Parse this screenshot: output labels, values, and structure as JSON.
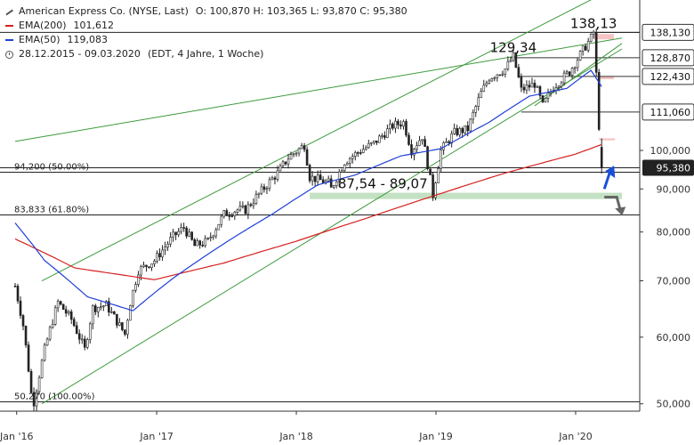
{
  "legend": {
    "title": "American Express Co. (NYSE, Last)",
    "ohlc": "O: 100,870  H: 103,365  L: 93,870  C: 95,380",
    "ema200_label": "EMA(200)",
    "ema200_value": "101,612",
    "ema50_label": "EMA(50)",
    "ema50_value": "119,083",
    "period": "28.12.2015 - 09.03.2020",
    "period_note": "(EDT, 4 Jahre, 1 Woche)"
  },
  "colors": {
    "candle": "#222222",
    "ema200": "#d62020",
    "ema50": "#1f3fd6",
    "channel": "#3d9a3d",
    "support_zone": "#b9dcb9",
    "resistance_zone": "#f6c4c4",
    "price_box_bg": "#222222",
    "arrow_up": "#1a4fd8",
    "arrow_down": "#666666"
  },
  "chart_data": {
    "type": "candlestick",
    "ylim": [
      49,
      148
    ],
    "y_ticks": [
      "50,000",
      "60,000",
      "70,000",
      "80,000",
      "90,000",
      "100,000"
    ],
    "y_tick_values": [
      50,
      60,
      70,
      80,
      90,
      100
    ],
    "x_tick_labels": [
      "Jan '16",
      "Jan '17",
      "Jan '18",
      "Jan '19",
      "Jan '20"
    ],
    "x_tick_dates": [
      "2016-01-01",
      "2017-01-01",
      "2018-01-01",
      "2019-01-01",
      "2020-01-01"
    ],
    "date_range": [
      "2015-12-28",
      "2020-03-09"
    ],
    "price_anchors": [
      {
        "date": "2015-12-28",
        "close": 69.0
      },
      {
        "date": "2016-01-18",
        "close": 62.0
      },
      {
        "date": "2016-02-08",
        "close": 51.5
      },
      {
        "date": "2016-02-15",
        "close": 50.27
      },
      {
        "date": "2016-03-14",
        "close": 58.0
      },
      {
        "date": "2016-04-18",
        "close": 66.0
      },
      {
        "date": "2016-05-23",
        "close": 63.0
      },
      {
        "date": "2016-06-27",
        "close": 58.0
      },
      {
        "date": "2016-07-18",
        "close": 65.0
      },
      {
        "date": "2016-08-22",
        "close": 65.5
      },
      {
        "date": "2016-10-10",
        "close": 60.5
      },
      {
        "date": "2016-10-24",
        "close": 66.0
      },
      {
        "date": "2016-11-14",
        "close": 72.0
      },
      {
        "date": "2016-12-26",
        "close": 74.0
      },
      {
        "date": "2017-02-13",
        "close": 79.0
      },
      {
        "date": "2017-03-13",
        "close": 81.0
      },
      {
        "date": "2017-04-10",
        "close": 77.0
      },
      {
        "date": "2017-05-15",
        "close": 78.0
      },
      {
        "date": "2017-06-26",
        "close": 84.0
      },
      {
        "date": "2017-07-31",
        "close": 85.0
      },
      {
        "date": "2017-08-21",
        "close": 85.0
      },
      {
        "date": "2017-10-16",
        "close": 91.0
      },
      {
        "date": "2017-11-13",
        "close": 94.0
      },
      {
        "date": "2017-12-11",
        "close": 98.0
      },
      {
        "date": "2018-01-22",
        "close": 101.5
      },
      {
        "date": "2018-02-05",
        "close": 93.0
      },
      {
        "date": "2018-03-26",
        "close": 91.5
      },
      {
        "date": "2018-04-02",
        "close": 90.0
      },
      {
        "date": "2018-05-07",
        "close": 97.0
      },
      {
        "date": "2018-06-18",
        "close": 100.0
      },
      {
        "date": "2018-07-23",
        "close": 102.0
      },
      {
        "date": "2018-09-10",
        "close": 107.0
      },
      {
        "date": "2018-10-08",
        "close": 108.0
      },
      {
        "date": "2018-10-29",
        "close": 100.0
      },
      {
        "date": "2018-11-26",
        "close": 104.0
      },
      {
        "date": "2018-12-24",
        "close": 88.5
      },
      {
        "date": "2019-01-14",
        "close": 100.0
      },
      {
        "date": "2019-02-18",
        "close": 105.0
      },
      {
        "date": "2019-03-25",
        "close": 106.0
      },
      {
        "date": "2019-04-29",
        "close": 117.0
      },
      {
        "date": "2019-05-20",
        "close": 122.0
      },
      {
        "date": "2019-07-01",
        "close": 125.0
      },
      {
        "date": "2019-07-22",
        "close": 129.34
      },
      {
        "date": "2019-08-12",
        "close": 118.0
      },
      {
        "date": "2019-09-16",
        "close": 120.0
      },
      {
        "date": "2019-10-07",
        "close": 113.0
      },
      {
        "date": "2019-11-04",
        "close": 119.0
      },
      {
        "date": "2019-12-16",
        "close": 124.0
      },
      {
        "date": "2020-01-13",
        "close": 130.0
      },
      {
        "date": "2020-02-10",
        "close": 136.0
      },
      {
        "date": "2020-02-17",
        "close": 138.13
      },
      {
        "date": "2020-02-24",
        "close": 123.0
      },
      {
        "date": "2020-03-02",
        "close": 107.0
      },
      {
        "date": "2020-03-09",
        "close": 95.38
      }
    ],
    "ema200_anchors": [
      {
        "date": "2015-12-28",
        "value": 78.5
      },
      {
        "date": "2016-06-01",
        "value": 72.5
      },
      {
        "date": "2016-12-26",
        "value": 70.2
      },
      {
        "date": "2017-06-26",
        "value": 73.5
      },
      {
        "date": "2018-01-01",
        "value": 78.0
      },
      {
        "date": "2018-07-01",
        "value": 83.0
      },
      {
        "date": "2019-01-01",
        "value": 88.5
      },
      {
        "date": "2019-07-01",
        "value": 94.0
      },
      {
        "date": "2020-01-01",
        "value": 99.0
      },
      {
        "date": "2020-03-09",
        "value": 101.612
      }
    ],
    "ema50_anchors": [
      {
        "date": "2015-12-28",
        "value": 82.0
      },
      {
        "date": "2016-03-14",
        "value": 74.0
      },
      {
        "date": "2016-07-04",
        "value": 67.0
      },
      {
        "date": "2016-10-31",
        "value": 64.5
      },
      {
        "date": "2017-02-13",
        "value": 70.5
      },
      {
        "date": "2017-06-26",
        "value": 77.5
      },
      {
        "date": "2017-10-30",
        "value": 84.0
      },
      {
        "date": "2018-02-26",
        "value": 91.0
      },
      {
        "date": "2018-06-04",
        "value": 93.5
      },
      {
        "date": "2018-10-01",
        "value": 98.5
      },
      {
        "date": "2019-01-14",
        "value": 100.5
      },
      {
        "date": "2019-05-20",
        "value": 108.0
      },
      {
        "date": "2019-09-02",
        "value": 116.0
      },
      {
        "date": "2019-12-09",
        "value": 118.5
      },
      {
        "date": "2020-02-10",
        "value": 124.5
      },
      {
        "date": "2020-03-09",
        "value": 119.083
      }
    ],
    "horizontal_levels": [
      {
        "value": 138.13,
        "tag": "138,130",
        "boxed": true
      },
      {
        "value": 128.87,
        "tag": "128,870",
        "boxed": true
      },
      {
        "value": 122.43,
        "tag": "122,430",
        "boxed": true
      },
      {
        "value": 111.06,
        "tag": "111,060",
        "boxed": true
      },
      {
        "value": 95.38,
        "tag": "95,380",
        "boxed": true,
        "current": true
      }
    ],
    "fibonacci_levels": [
      {
        "value": 94.2,
        "label": "94,200 (50.00%)"
      },
      {
        "value": 83.833,
        "label": "83,833 (61.80%)"
      },
      {
        "value": 50.27,
        "label": "50,270 (100.00%)"
      }
    ],
    "support_zone": {
      "low": 87.54,
      "high": 89.07,
      "label": "87,54 - 89,07",
      "from": "2018-02-05",
      "to": "2020-05-01"
    },
    "resistance_zones": [
      {
        "low": 135.5,
        "high": 137.5,
        "from": "2020-02-17",
        "to": "2020-04-10"
      },
      {
        "low": 121.5,
        "high": 122.4,
        "from": "2020-03-02",
        "to": "2020-04-10"
      },
      {
        "low": 102.8,
        "high": 103.36,
        "from": "2020-03-02",
        "to": "2020-04-13"
      }
    ],
    "annotations": [
      {
        "text": "138,13",
        "date": "2020-02-17",
        "value": 138.13
      },
      {
        "text": "129,34",
        "date": "2019-07-22",
        "value": 129.34
      },
      {
        "text": "87,54 - 89,07",
        "date": "2018-08-15",
        "value": 89.07
      }
    ],
    "trendlines": [
      {
        "kind": "channel-upper",
        "from": {
          "date": "2016-03-07",
          "value": 70.0
        },
        "to": {
          "date": "2020-03-30",
          "value": 155.0
        }
      },
      {
        "kind": "channel-lower",
        "from": {
          "date": "2016-03-07",
          "value": 50.0
        },
        "to": {
          "date": "2020-05-01",
          "value": 132.0
        }
      },
      {
        "kind": "long-trend",
        "from": {
          "date": "2015-12-28",
          "value": 102.5
        },
        "to": {
          "date": "2020-05-01",
          "value": 136.0
        }
      },
      {
        "kind": "wedge-lower",
        "from": {
          "date": "2019-09-16",
          "value": 113.0
        },
        "to": {
          "date": "2020-05-01",
          "value": 134.0
        }
      }
    ],
    "arrows": [
      {
        "direction": "up",
        "date": "2020-03-16",
        "from": 90.0,
        "to": 95.0
      },
      {
        "direction": "down",
        "date": "2020-03-16",
        "from": 88.0,
        "to": 84.5
      }
    ],
    "grid": false,
    "y_axis_side": "right"
  }
}
